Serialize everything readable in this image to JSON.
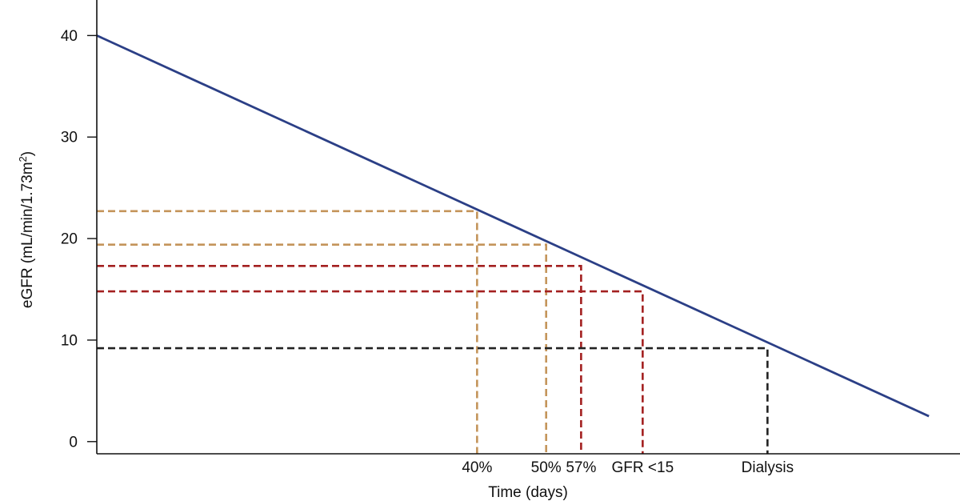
{
  "chart_data": {
    "type": "line",
    "title": "",
    "xlabel": "Time (days)",
    "ylabel": "eGFR (mL/min/1.73m²)",
    "ylabel_main": "eGFR (mL/min/1.73m",
    "ylabel_sup": "2",
    "ylabel_end": ")",
    "ylim": [
      -1.2,
      43.5
    ],
    "xlim": [
      0,
      100
    ],
    "yticks": [
      0,
      10,
      20,
      30,
      40
    ],
    "x_axis_ticks": "none",
    "grid": false,
    "series": [
      {
        "color": "#2b3f86",
        "points": [
          {
            "x": 0,
            "y": 40.0
          },
          {
            "x": 100,
            "y": 2.5
          }
        ]
      }
    ],
    "thresholds": [
      {
        "label": "40%",
        "y": 22.7,
        "x": 45.7,
        "color": "#c4945a"
      },
      {
        "label": "50%",
        "y": 19.4,
        "x": 54.0,
        "color": "#c4945a"
      },
      {
        "label": "57%",
        "y": 17.3,
        "x": 58.2,
        "color": "#a32020"
      },
      {
        "label": "GFR <15",
        "y": 14.8,
        "x": 65.6,
        "color": "#a32020"
      },
      {
        "label": "Dialysis",
        "y": 9.2,
        "x": 80.6,
        "color": "#222222"
      }
    ]
  }
}
